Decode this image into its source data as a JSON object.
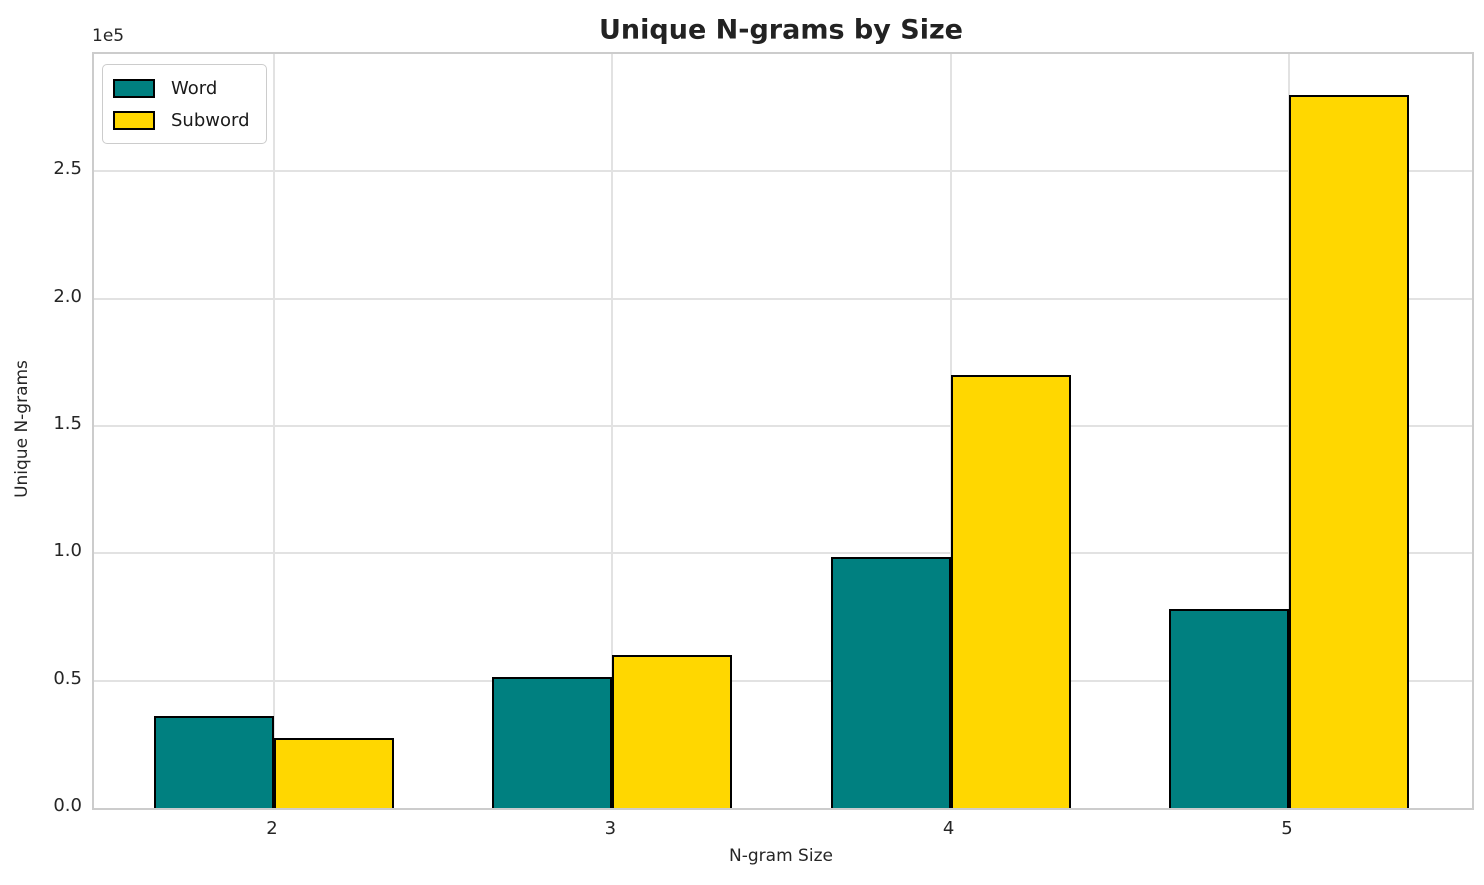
{
  "chart_data": {
    "type": "bar",
    "title": "Unique N-grams by Size",
    "xlabel": "N-gram Size",
    "ylabel": "Unique N-grams",
    "y_offset_label": "1e5",
    "categories": [
      "2",
      "3",
      "4",
      "5"
    ],
    "series": [
      {
        "name": "Word",
        "color": "#008080",
        "values": [
          36000,
          51500,
          98500,
          78000
        ]
      },
      {
        "name": "Subword",
        "color": "#FFD700",
        "values": [
          27500,
          60000,
          170000,
          280000
        ]
      }
    ],
    "bar_edge_color": "#000000",
    "ylim": [
      0,
      296000
    ],
    "yticks": [
      {
        "value": 0,
        "label": "0.0"
      },
      {
        "value": 50000,
        "label": "0.5"
      },
      {
        "value": 100000,
        "label": "1.0"
      },
      {
        "value": 150000,
        "label": "1.5"
      },
      {
        "value": 200000,
        "label": "2.0"
      },
      {
        "value": 250000,
        "label": "2.5"
      }
    ],
    "grid": true,
    "legend_position": "upper left",
    "background_color": "#ffffff",
    "grid_color": "#e2e2e2",
    "spine_color": "#cccccc"
  }
}
